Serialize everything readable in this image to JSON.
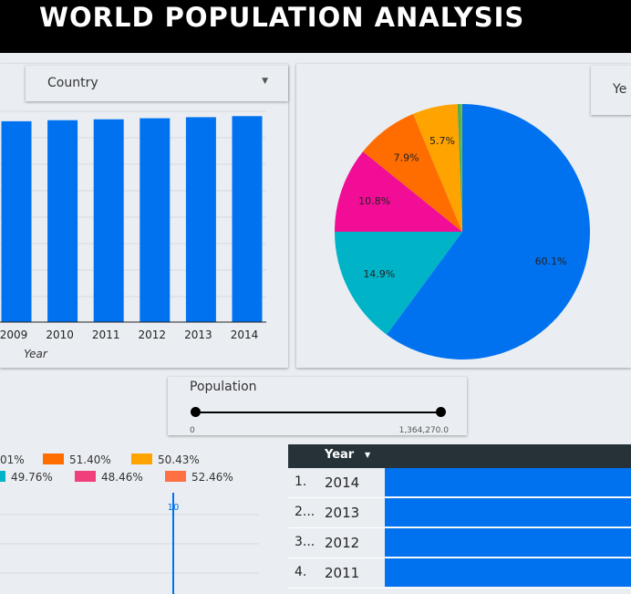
{
  "header": {
    "title": "WORLD POPULATION ANALYSIS"
  },
  "country_dropdown": {
    "label": "Country"
  },
  "year_dropdown": {
    "label": "Ye"
  },
  "colors": {
    "accent": "#0072f0",
    "header_bg": "#000000"
  },
  "chart_data": [
    {
      "type": "bar",
      "categories": [
        "2009",
        "2010",
        "2011",
        "2012",
        "2013",
        "2014"
      ],
      "values": [
        1334,
        1341,
        1347,
        1354,
        1361,
        1368
      ],
      "xlabel": "Year",
      "ylim": [
        0,
        1400
      ],
      "grid": true
    },
    {
      "type": "pie",
      "slices": [
        {
          "label": "60.1%",
          "value": 60.1,
          "color": "#0072f0"
        },
        {
          "label": "14.9%",
          "value": 14.9,
          "color": "#00b3c6"
        },
        {
          "label": "10.8%",
          "value": 10.8,
          "color": "#f10d96"
        },
        {
          "label": "7.9%",
          "value": 7.9,
          "color": "#ff6d00"
        },
        {
          "label": "5.7%",
          "value": 5.7,
          "color": "#ffa300"
        },
        {
          "label": "",
          "value": 0.4,
          "color": "#4caf50"
        },
        {
          "label": "",
          "value": 0.2,
          "color": "#7cb342"
        }
      ]
    }
  ],
  "slider": {
    "title": "Population",
    "min_label": "0",
    "max_label": "1,364,270.0"
  },
  "legend": {
    "items": [
      {
        "text": "01%",
        "color": ""
      },
      {
        "text": "51.40%",
        "color": "#ff6d00"
      },
      {
        "text": "50.43%",
        "color": "#ffa300"
      },
      {
        "text": "49.76%",
        "color": "#00b3c6"
      },
      {
        "text": "48.46%",
        "color": "#f03f7a"
      },
      {
        "text": "52.46%",
        "color": "#ff7043"
      }
    ]
  },
  "timeline": {
    "marker_label": "10"
  },
  "table": {
    "header": "Year",
    "rows": [
      {
        "index": "1.",
        "year": "2014"
      },
      {
        "index": "2...",
        "year": "2013"
      },
      {
        "index": "3...",
        "year": "2012"
      },
      {
        "index": "4.",
        "year": "2011"
      }
    ]
  }
}
